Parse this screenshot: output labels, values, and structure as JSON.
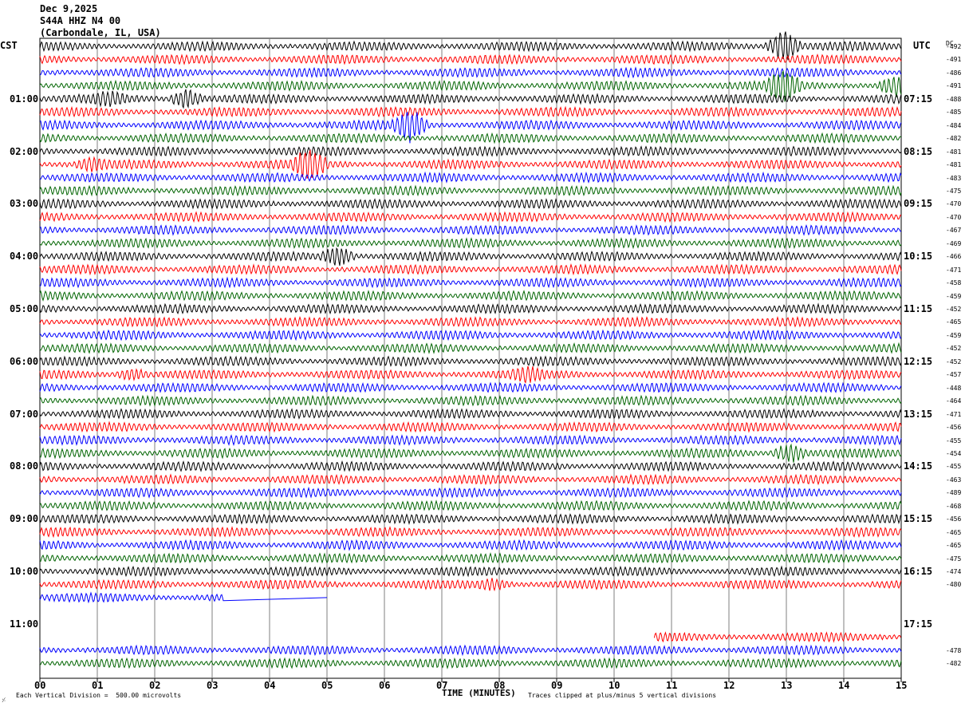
{
  "header": {
    "date": "Dec 9,2025",
    "station": "S44A HHZ N4 00",
    "location": "(Carbondale, IL, USA)"
  },
  "left_label": "CST",
  "right_label": "UTC",
  "dc_label": "DC",
  "footer": {
    "division": "Each Vertical Division =  500.00 microvolts",
    "clipped": "Traces clipped at plus/minus 5 vertical divisions",
    "time_title": "TIME (MINUTES)"
  },
  "colors": {
    "black": "#000000",
    "red": "#ff0000",
    "blue": "#0000ff",
    "green": "#006400"
  },
  "chart_data": {
    "type": "line",
    "title": "S44A HHZ N4 00",
    "xlabel": "TIME (MINUTES)",
    "xlim": [
      0,
      15
    ],
    "x_ticks": [
      "00",
      "01",
      "02",
      "03",
      "04",
      "05",
      "06",
      "07",
      "08",
      "09",
      "10",
      "11",
      "12",
      "13",
      "14",
      "15"
    ],
    "row_minutes": 15,
    "color_cycle": [
      "black",
      "red",
      "blue",
      "green"
    ],
    "hour_labels": [
      {
        "row": 4,
        "cst": "01:00",
        "utc": "07:15"
      },
      {
        "row": 8,
        "cst": "02:00",
        "utc": "08:15"
      },
      {
        "row": 12,
        "cst": "03:00",
        "utc": "09:15"
      },
      {
        "row": 16,
        "cst": "04:00",
        "utc": "10:15"
      },
      {
        "row": 20,
        "cst": "05:00",
        "utc": "11:15"
      },
      {
        "row": 24,
        "cst": "06:00",
        "utc": "12:15"
      },
      {
        "row": 28,
        "cst": "07:00",
        "utc": "13:15"
      },
      {
        "row": 32,
        "cst": "08:00",
        "utc": "14:15"
      },
      {
        "row": 36,
        "cst": "09:00",
        "utc": "15:15"
      },
      {
        "row": 40,
        "cst": "10:00",
        "utc": "16:15"
      },
      {
        "row": 44,
        "cst": "11:00",
        "utc": "17:15"
      }
    ],
    "dc_offsets": [
      "-492",
      "-491",
      "-486",
      "-491",
      "-488",
      "-485",
      "-484",
      "-482",
      "-481",
      "-481",
      "-483",
      "-475",
      "-470",
      "-470",
      "-467",
      "-469",
      "-466",
      "-471",
      "-458",
      "-459",
      "-452",
      "-465",
      "-459",
      "-452",
      "-452",
      "-457",
      "-448",
      "-464",
      "-471",
      "-456",
      "-455",
      "-454",
      "-455",
      "-463",
      "-489",
      "-468",
      "-456",
      "-465",
      "-465",
      "-475",
      "-474",
      "-480",
      "",
      "",
      "",
      "",
      "-478",
      "-482"
    ],
    "traces": [
      {
        "row": 0,
        "color": "black",
        "x_start": 0,
        "x_end": 15,
        "events": [
          {
            "x": 12.95,
            "amp": "large"
          }
        ]
      },
      {
        "row": 1,
        "color": "red",
        "x_start": 0,
        "x_end": 15
      },
      {
        "row": 2,
        "color": "blue",
        "x_start": 0,
        "x_end": 15
      },
      {
        "row": 3,
        "color": "green",
        "x_start": 0,
        "x_end": 15,
        "events": [
          {
            "x": 12.95,
            "amp": "large"
          },
          {
            "x": 14.9,
            "amp": "medium"
          }
        ]
      },
      {
        "row": 4,
        "color": "black",
        "x_start": 0,
        "x_end": 15,
        "events": [
          {
            "x": 1.2,
            "amp": "small"
          },
          {
            "x": 2.55,
            "amp": "medium"
          }
        ]
      },
      {
        "row": 5,
        "color": "red",
        "x_start": 0,
        "x_end": 15
      },
      {
        "row": 6,
        "color": "blue",
        "x_start": 0,
        "x_end": 15,
        "events": [
          {
            "x": 6.45,
            "amp": "large"
          }
        ]
      },
      {
        "row": 7,
        "color": "green",
        "x_start": 0,
        "x_end": 15
      },
      {
        "row": 8,
        "color": "black",
        "x_start": 0,
        "x_end": 15
      },
      {
        "row": 9,
        "color": "red",
        "x_start": 0,
        "x_end": 15,
        "events": [
          {
            "x": 0.9,
            "amp": "small"
          },
          {
            "x": 4.7,
            "amp": "large"
          }
        ]
      },
      {
        "row": 10,
        "color": "blue",
        "x_start": 0,
        "x_end": 15
      },
      {
        "row": 11,
        "color": "green",
        "x_start": 0,
        "x_end": 15
      },
      {
        "row": 12,
        "color": "black",
        "x_start": 0,
        "x_end": 15
      },
      {
        "row": 13,
        "color": "red",
        "x_start": 0,
        "x_end": 15
      },
      {
        "row": 14,
        "color": "blue",
        "x_start": 0,
        "x_end": 15
      },
      {
        "row": 15,
        "color": "green",
        "x_start": 0,
        "x_end": 15
      },
      {
        "row": 16,
        "color": "black",
        "x_start": 0,
        "x_end": 15,
        "events": [
          {
            "x": 5.2,
            "amp": "medium"
          }
        ]
      },
      {
        "row": 17,
        "color": "red",
        "x_start": 0,
        "x_end": 15
      },
      {
        "row": 18,
        "color": "blue",
        "x_start": 0,
        "x_end": 15
      },
      {
        "row": 19,
        "color": "green",
        "x_start": 0,
        "x_end": 15
      },
      {
        "row": 20,
        "color": "black",
        "x_start": 0,
        "x_end": 15
      },
      {
        "row": 21,
        "color": "red",
        "x_start": 0,
        "x_end": 15
      },
      {
        "row": 22,
        "color": "blue",
        "x_start": 0,
        "x_end": 15
      },
      {
        "row": 23,
        "color": "green",
        "x_start": 0,
        "x_end": 15
      },
      {
        "row": 24,
        "color": "black",
        "x_start": 0,
        "x_end": 15
      },
      {
        "row": 25,
        "color": "red",
        "x_start": 0,
        "x_end": 15,
        "events": [
          {
            "x": 1.6,
            "amp": "small"
          },
          {
            "x": 8.5,
            "amp": "small"
          }
        ]
      },
      {
        "row": 26,
        "color": "blue",
        "x_start": 0,
        "x_end": 15
      },
      {
        "row": 27,
        "color": "green",
        "x_start": 0,
        "x_end": 15
      },
      {
        "row": 28,
        "color": "black",
        "x_start": 0,
        "x_end": 15
      },
      {
        "row": 29,
        "color": "red",
        "x_start": 0,
        "x_end": 15
      },
      {
        "row": 30,
        "color": "blue",
        "x_start": 0,
        "x_end": 15
      },
      {
        "row": 31,
        "color": "green",
        "x_start": 0,
        "x_end": 15,
        "events": [
          {
            "x": 13.05,
            "amp": "medium"
          }
        ]
      },
      {
        "row": 32,
        "color": "black",
        "x_start": 0,
        "x_end": 15
      },
      {
        "row": 33,
        "color": "red",
        "x_start": 0,
        "x_end": 15
      },
      {
        "row": 34,
        "color": "blue",
        "x_start": 0,
        "x_end": 15
      },
      {
        "row": 35,
        "color": "green",
        "x_start": 0,
        "x_end": 15
      },
      {
        "row": 36,
        "color": "black",
        "x_start": 0,
        "x_end": 15
      },
      {
        "row": 37,
        "color": "red",
        "x_start": 0,
        "x_end": 15
      },
      {
        "row": 38,
        "color": "blue",
        "x_start": 0,
        "x_end": 15
      },
      {
        "row": 39,
        "color": "green",
        "x_start": 0,
        "x_end": 15
      },
      {
        "row": 40,
        "color": "black",
        "x_start": 0,
        "x_end": 15
      },
      {
        "row": 41,
        "color": "red",
        "x_start": 0,
        "x_end": 15,
        "events": [
          {
            "x": 7.9,
            "amp": "small"
          }
        ]
      },
      {
        "row": 42,
        "color": "blue",
        "x_start": 0,
        "x_end": 3.2,
        "flat_to": 5.0
      },
      {
        "row": 45,
        "color": "red",
        "x_start": 10.7,
        "x_end": 15
      },
      {
        "row": 46,
        "color": "blue",
        "x_start": 0,
        "x_end": 15
      },
      {
        "row": 47,
        "color": "green",
        "x_start": 0,
        "x_end": 15
      }
    ]
  }
}
